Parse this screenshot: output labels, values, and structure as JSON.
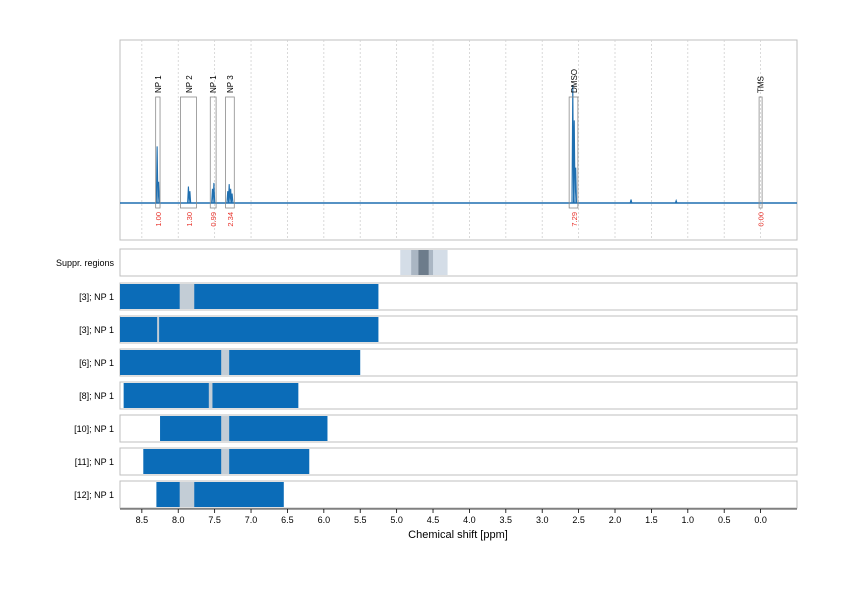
{
  "chart_data": {
    "type": "nmr-spectrum-with-range-bars",
    "xlabel": "Chemical shift [ppm]",
    "xlim": [
      8.8,
      -0.5
    ],
    "x_reversed": true,
    "x_ticks": [
      8.5,
      8.0,
      7.5,
      7.0,
      6.5,
      6.0,
      5.5,
      5.0,
      4.5,
      4.0,
      3.5,
      3.0,
      2.5,
      2.0,
      1.5,
      1.0,
      0.5,
      0.0
    ],
    "x_tick_labels": [
      "8.5",
      "8.0",
      "7.5",
      "7.0",
      "6.5",
      "6.0",
      "5.5",
      "5.0",
      "4.5",
      "4.0",
      "3.5",
      "3.0",
      "2.5",
      "2.0",
      "1.5",
      "1.0",
      "0.5",
      "0.0"
    ],
    "spectrum": {
      "color": "#1f6fb0",
      "peaks": [
        {
          "ppm": 8.29,
          "height": 0.48
        },
        {
          "ppm": 8.27,
          "height": 0.18
        },
        {
          "ppm": 7.86,
          "height": 0.14
        },
        {
          "ppm": 7.84,
          "height": 0.1
        },
        {
          "ppm": 7.53,
          "height": 0.12
        },
        {
          "ppm": 7.51,
          "height": 0.17
        },
        {
          "ppm": 7.32,
          "height": 0.1
        },
        {
          "ppm": 7.3,
          "height": 0.16
        },
        {
          "ppm": 7.28,
          "height": 0.12
        },
        {
          "ppm": 7.26,
          "height": 0.08
        },
        {
          "ppm": 2.58,
          "height": 1.0
        },
        {
          "ppm": 2.56,
          "height": 0.7
        },
        {
          "ppm": 2.54,
          "height": 0.3
        },
        {
          "ppm": 1.78,
          "height": 0.03
        },
        {
          "ppm": 1.16,
          "height": 0.02
        }
      ]
    },
    "regions": [
      {
        "label": "NP 1",
        "center": 8.28,
        "lo": 8.25,
        "hi": 8.31,
        "integral": "1.00"
      },
      {
        "label": "NP 2",
        "center": 7.85,
        "lo": 7.75,
        "hi": 7.97,
        "integral": "1.30"
      },
      {
        "label": "NP 1",
        "center": 7.52,
        "lo": 7.48,
        "hi": 7.56,
        "integral": "0.99"
      },
      {
        "label": "NP 3",
        "center": 7.29,
        "lo": 7.23,
        "hi": 7.35,
        "integral": "2.34"
      },
      {
        "label": "DMSO",
        "center": 2.56,
        "lo": 2.51,
        "hi": 2.63,
        "integral": "7.29"
      },
      {
        "label": "TMS",
        "center": 0.0,
        "lo": -0.02,
        "hi": 0.02,
        "integral": "0.00"
      }
    ],
    "suppression": {
      "label": "Suppr. regions",
      "bands": [
        {
          "lo": 4.3,
          "hi": 4.95,
          "color": "#d4dde7"
        },
        {
          "lo": 4.5,
          "hi": 4.8,
          "color": "#aab6c3"
        },
        {
          "lo": 4.56,
          "hi": 4.7,
          "color": "#6d7c8b"
        }
      ]
    },
    "range_rows": [
      {
        "label": "[3]; NP 1",
        "start": 8.8,
        "end": 5.25,
        "gap_lo": 7.78,
        "gap_hi": 7.98
      },
      {
        "label": "[3]; NP 1",
        "start": 8.8,
        "end": 5.25,
        "gap_lo": 8.27,
        "gap_hi": 8.29
      },
      {
        "label": "[6]; NP 1",
        "start": 8.8,
        "end": 5.5,
        "gap_lo": 7.3,
        "gap_hi": 7.41
      },
      {
        "label": "[8]; NP 1",
        "start": 8.75,
        "end": 6.35,
        "gap_lo": 7.53,
        "gap_hi": 7.58
      },
      {
        "label": "[10]; NP 1",
        "start": 8.25,
        "end": 5.95,
        "gap_lo": 7.3,
        "gap_hi": 7.41
      },
      {
        "label": "[11]; NP 1",
        "start": 8.48,
        "end": 6.2,
        "gap_lo": 7.3,
        "gap_hi": 7.41
      },
      {
        "label": "[12]; NP 1",
        "start": 8.3,
        "end": 6.55,
        "gap_lo": 7.78,
        "gap_hi": 7.98
      }
    ],
    "colors": {
      "bar": "#0b6cb8",
      "gap": "#c3cdd6",
      "integral": "#e8312a",
      "grid": "#d0d0d0",
      "frame": "#bfbfbf"
    }
  }
}
